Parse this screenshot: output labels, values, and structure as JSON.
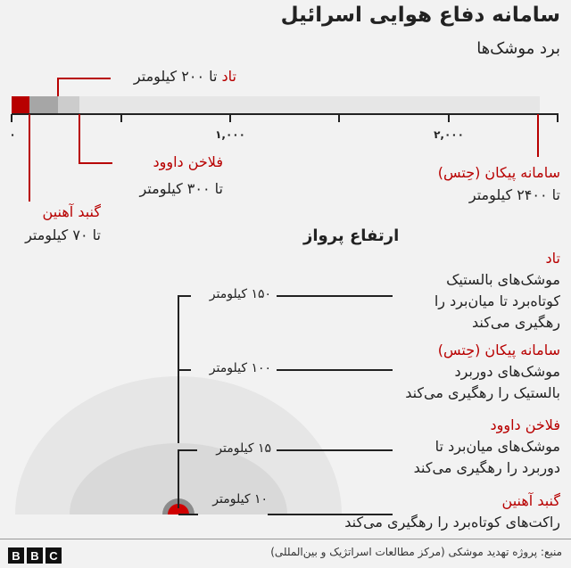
{
  "title": "سامانه دفاع هوایی اسرائیل",
  "range_section": {
    "subtitle": "برد موشک‌ها",
    "axis_ticks": [
      "۰",
      "۱,۰۰۰",
      "۲,۰۰۰"
    ],
    "axis_max_km": 2400,
    "systems": [
      {
        "name": "گنبد آهنین",
        "range": "تا ۷۰ کیلومتر",
        "range_km": 70,
        "color": "#b80000"
      },
      {
        "name": "تاد",
        "range": "تا ۲۰۰ کیلومتر",
        "range_km": 200,
        "color": "#a6a6a6"
      },
      {
        "name": "فلاخن داوود",
        "range": "تا ۳۰۰ کیلومتر",
        "range_km": 300,
        "color": "#cccccc"
      },
      {
        "name": "سامانه پیکان (حِتس)",
        "range": "تا ۲۴۰۰ کیلومتر",
        "range_km": 2400,
        "color": "#e6e6e6"
      }
    ]
  },
  "altitude_section": {
    "heading": "ارتفاع پرواز",
    "items": [
      {
        "altitude": "۱۵۰ کیلومتر",
        "name": "تاد",
        "desc": [
          "موشک‌های بالستیک",
          "کوتاه‌برد تا میان‌برد را",
          "رهگیری می‌کند"
        ]
      },
      {
        "altitude": "۱۰۰ کیلومتر",
        "name": "سامانه پیکان (حِتس)",
        "desc": [
          "موشک‌های دوربرد",
          "بالستیک را رهگیری می‌کند"
        ]
      },
      {
        "altitude": "۱۵ کیلومتر",
        "name": "فلاخن داوود",
        "desc": [
          "موشک‌های میان‌برد تا",
          "دوربرد را رهگیری می‌کند"
        ]
      },
      {
        "altitude": "۱۰ کیلومتر",
        "name": "گنبد آهنین",
        "desc": [
          "راکت‌های کوتاه‌برد را رهگیری می‌کند"
        ]
      }
    ]
  },
  "footer": {
    "logo": "BBC",
    "source": "منبع: پروژه تهدید موشکی (مرکز مطالعات اسراتژیک و بین‌المللی)"
  },
  "colors": {
    "accent": "#b80000",
    "background": "#f2f2f2"
  }
}
